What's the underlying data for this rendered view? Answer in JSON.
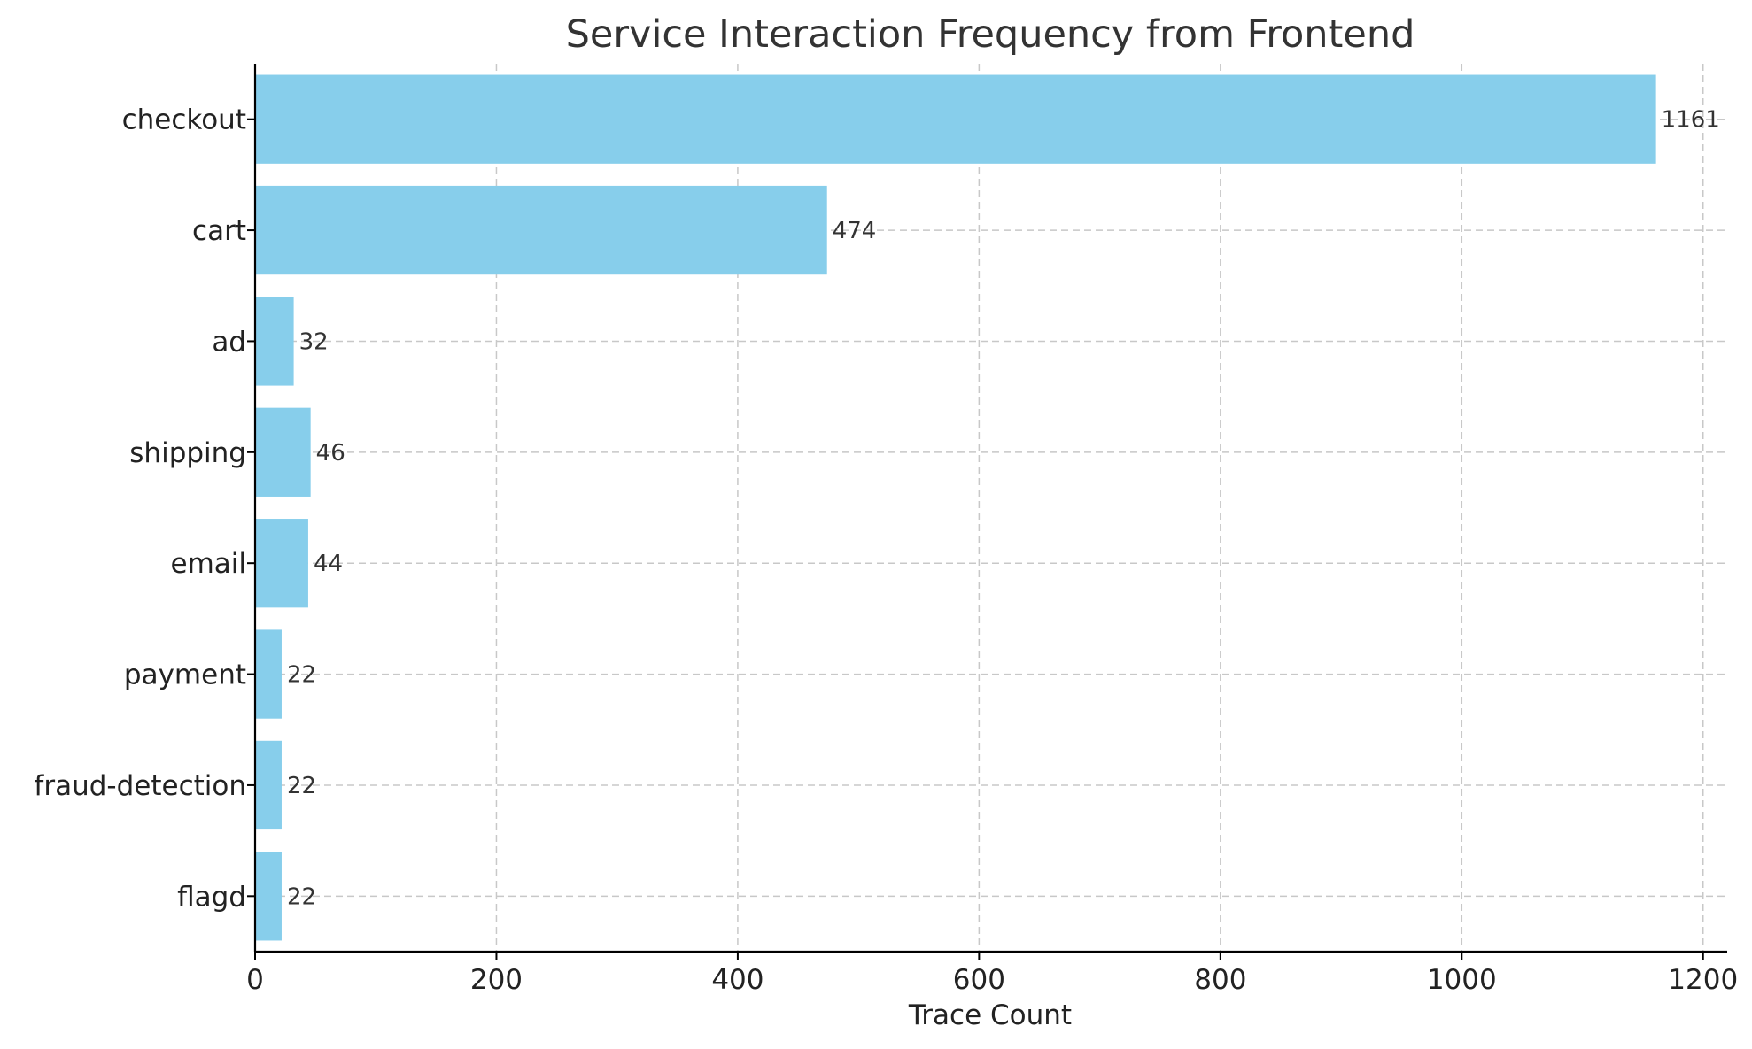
{
  "chart_data": {
    "type": "bar",
    "orientation": "horizontal",
    "title": "Service Interaction Frequency from Frontend",
    "xlabel": "Trace Count",
    "ylabel": "",
    "categories": [
      "checkout",
      "cart",
      "ad",
      "shipping",
      "email",
      "payment",
      "fraud-detection",
      "flagd"
    ],
    "values": [
      1161,
      474,
      32,
      46,
      44,
      22,
      22,
      22
    ],
    "data_labels": [
      "1161",
      "474",
      "32",
      "46",
      "44",
      "22",
      "22",
      "22"
    ],
    "xlim": [
      0,
      1220
    ],
    "xticks": [
      0,
      200,
      400,
      600,
      800,
      1000,
      1200
    ],
    "xtick_labels": [
      "0",
      "200",
      "400",
      "600",
      "800",
      "1000",
      "1200"
    ],
    "grid": true,
    "bar_color": "#87CEEB"
  }
}
